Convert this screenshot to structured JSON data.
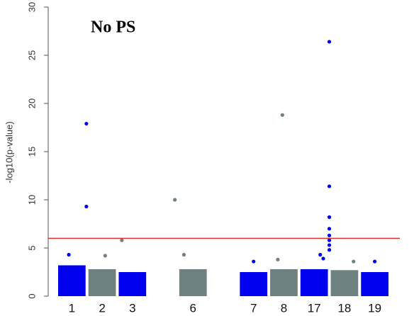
{
  "chart_data": {
    "type": "scatter",
    "title": "No PS",
    "y_label": "-log10(p-value)",
    "categories": [
      "1",
      "2",
      "3",
      null,
      "6",
      null,
      "7",
      "8",
      "17",
      "18",
      "19"
    ],
    "values": [
      3.2,
      2.8,
      2.5,
      null,
      2.8,
      null,
      2.5,
      2.8,
      2.8,
      2.7,
      2.5
    ],
    "colors": [
      "#0000ee",
      "#6e8080",
      "#0000ee",
      null,
      "#6e8080",
      null,
      "#0000ee",
      "#6e8080",
      "#0000ee",
      "#6e8080",
      "#0000ee"
    ],
    "series": [
      {
        "color": "#0000ee",
        "x": [
          0.98,
          0.98,
          0.4,
          9.0,
          9.0,
          9.0,
          9.0,
          9.0,
          9.0,
          9.0,
          9.0,
          8.7,
          8.8,
          6.5,
          10.5
        ],
        "values": [
          17.9,
          9.3,
          4.3,
          26.4,
          11.4,
          8.2,
          7.0,
          6.3,
          5.8,
          5.3,
          4.8,
          4.3,
          3.9,
          3.6,
          3.6
        ]
      },
      {
        "color": "#6e8080",
        "x": [
          2.15,
          3.9,
          4.2,
          7.45,
          1.6,
          7.3,
          9.8
        ],
        "values": [
          5.8,
          10.0,
          4.3,
          18.8,
          4.2,
          3.8,
          3.6
        ]
      }
    ],
    "threshold": 6,
    "threshold_color": "#e03030",
    "xlim": [
      0,
      11
    ],
    "ylim": [
      0,
      30
    ],
    "yticks": [
      0,
      5,
      10,
      15,
      20,
      25,
      30
    ]
  }
}
